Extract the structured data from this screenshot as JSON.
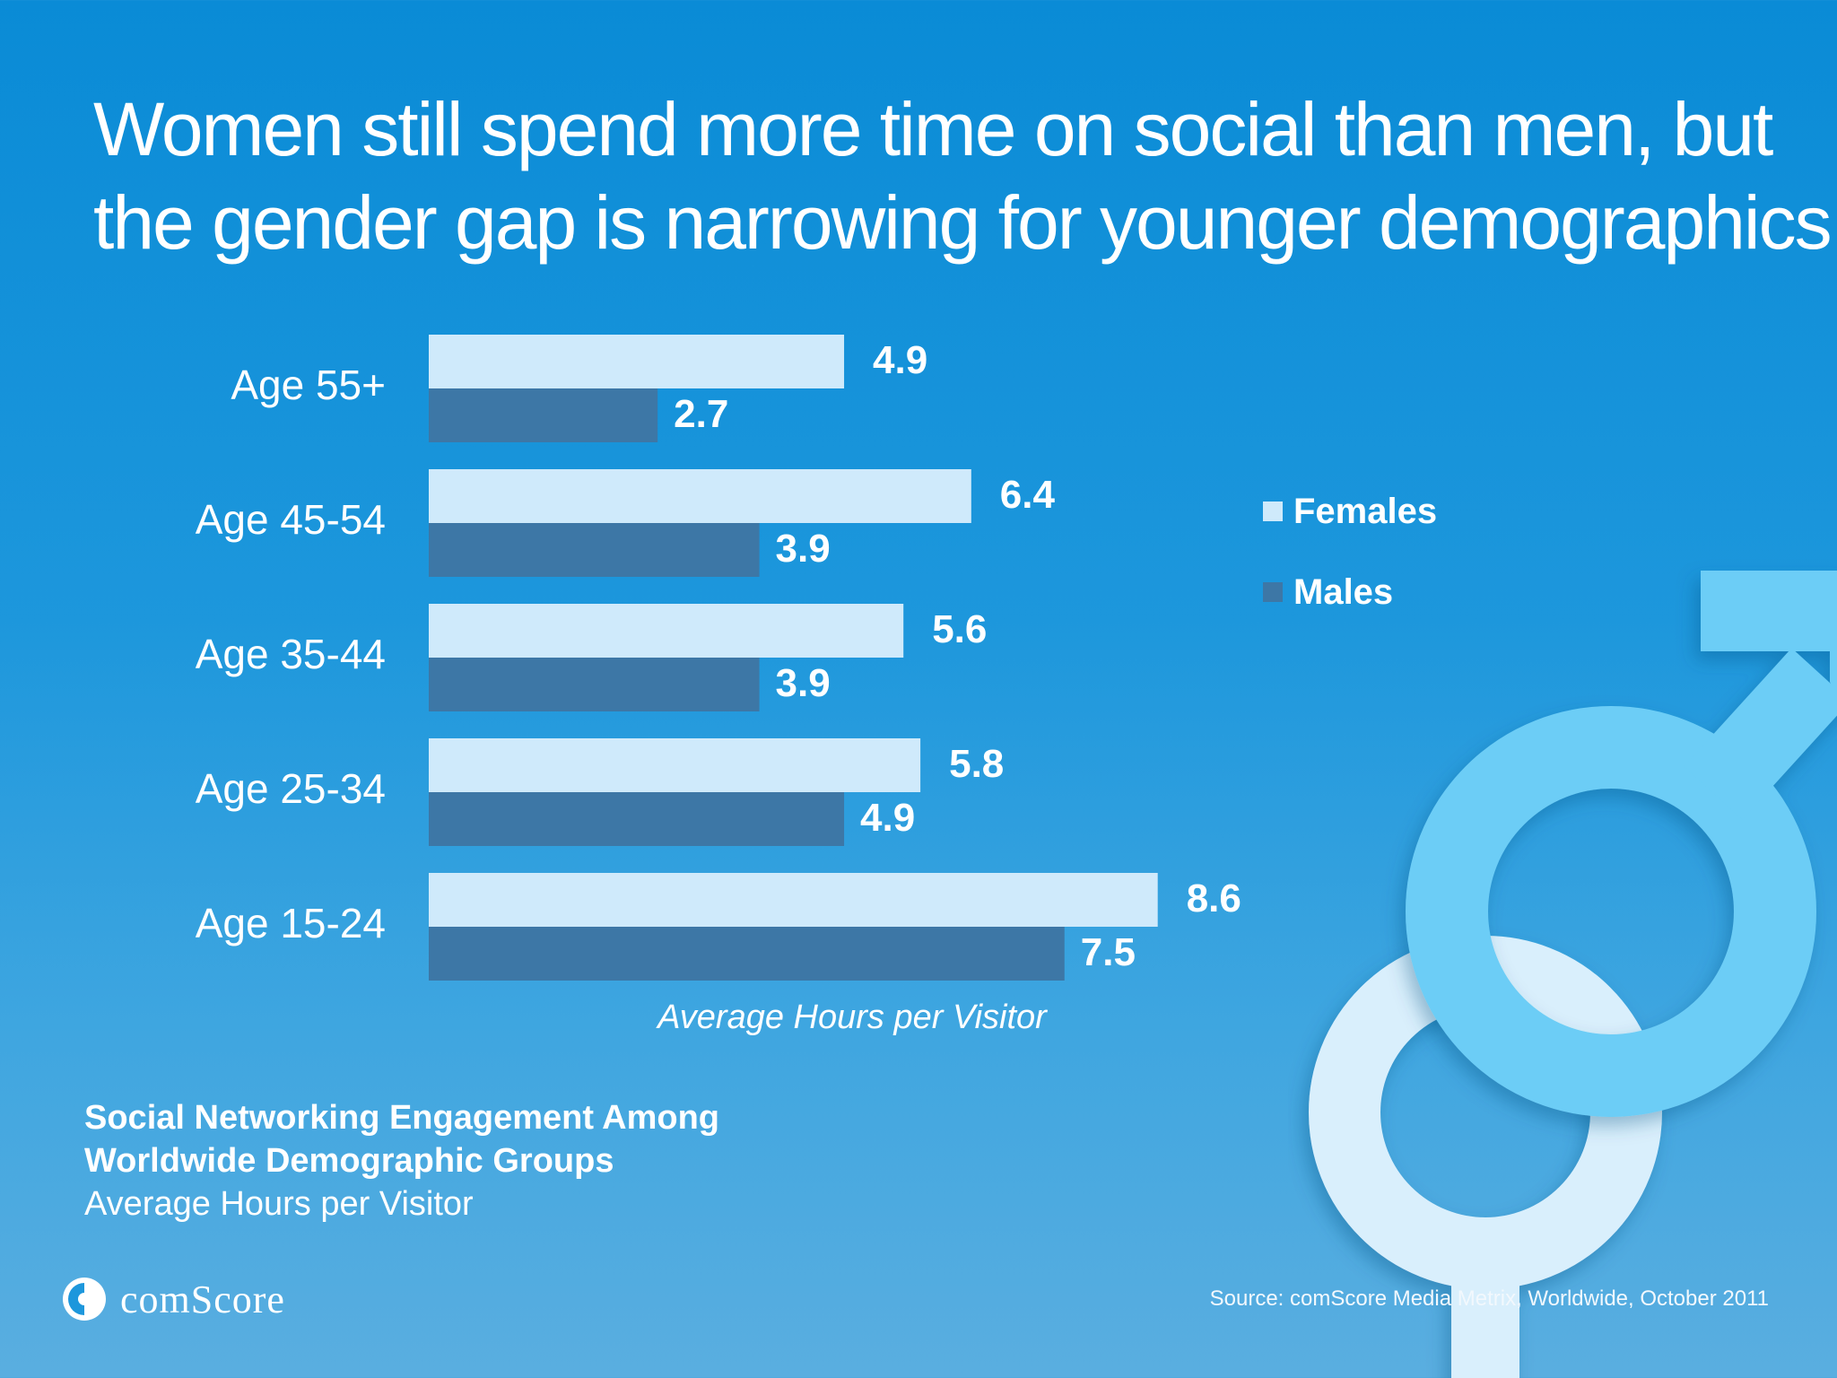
{
  "headline": {
    "line1": "Women still spend more time on social than men, but",
    "line2": "the gender gap is narrowing for younger demographics."
  },
  "chart_data": {
    "type": "bar",
    "orientation": "horizontal",
    "categories": [
      "Age 55+",
      "Age 45-54",
      "Age 35-44",
      "Age 25-34",
      "Age 15-24"
    ],
    "series": [
      {
        "name": "Females",
        "values": [
          4.9,
          6.4,
          5.6,
          5.8,
          8.6
        ],
        "color": "#cfeafb"
      },
      {
        "name": "Males",
        "values": [
          2.7,
          3.9,
          3.9,
          4.9,
          7.5
        ],
        "color": "#3d77a6"
      }
    ],
    "xlabel": "Average Hours per Visitor",
    "xlim": [
      0,
      8.6
    ],
    "grid": false,
    "legend": "right"
  },
  "legend": {
    "females": "Females",
    "males": "Males"
  },
  "caption": {
    "line1": "Social Networking Engagement Among",
    "line2": "Worldwide Demographic Groups",
    "line3": "Average Hours per Visitor"
  },
  "brand": {
    "name": "comScore"
  },
  "source": "Source: comScore Media Metrix, Worldwide, October 2011",
  "colors": {
    "background": "#1d97dc",
    "females": "#cfeafb",
    "males": "#3d77a6",
    "male_symbol": "#6ccdf6",
    "female_symbol": "#d9effc"
  }
}
